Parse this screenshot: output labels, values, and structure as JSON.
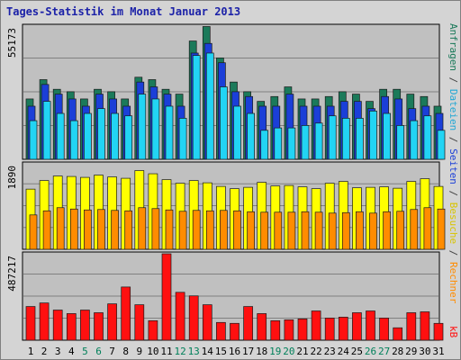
{
  "chart_data": {
    "type": "bar",
    "title": "Tages-Statistik im Monat Januar 2013",
    "days": [
      "1",
      "2",
      "3",
      "4",
      "5",
      "6",
      "7",
      "8",
      "9",
      "10",
      "11",
      "12",
      "13",
      "14",
      "15",
      "16",
      "17",
      "18",
      "19",
      "20",
      "21",
      "22",
      "23",
      "24",
      "25",
      "26",
      "27",
      "28",
      "29",
      "30",
      "31"
    ],
    "weekend_days": [
      "5",
      "6",
      "12",
      "13",
      "19",
      "20",
      "26",
      "27"
    ],
    "panels": [
      {
        "ymax_label": "55173",
        "ymax": 55173,
        "series": [
          {
            "name": "Anfragen",
            "color": "#1b7a5a",
            "values": [
              25000,
              33000,
              29000,
              28000,
              25000,
              29000,
              28000,
              25000,
              34000,
              33000,
              29000,
              27000,
              49000,
              55000,
              42000,
              32000,
              28000,
              24000,
              26000,
              30000,
              25000,
              25000,
              26000,
              28000,
              27000,
              24000,
              29000,
              29000,
              27000,
              26000,
              22000
            ]
          },
          {
            "name": "Seiten",
            "color": "#1b3fd8",
            "values": [
              22000,
              31000,
              27000,
              25000,
              22000,
              27000,
              25000,
              22000,
              32000,
              30000,
              27000,
              22000,
              44000,
              48000,
              40000,
              28000,
              26000,
              22000,
              22000,
              27000,
              22000,
              22000,
              22000,
              24000,
              24000,
              21000,
              26000,
              25000,
              21000,
              22000,
              19000
            ]
          },
          {
            "name": "Dateien",
            "color": "#22d4f4",
            "values": [
              16000,
              24000,
              19000,
              16000,
              19000,
              21000,
              19000,
              18000,
              27000,
              25000,
              22000,
              17000,
              43000,
              44000,
              30000,
              22000,
              19000,
              12000,
              13000,
              13000,
              14000,
              15000,
              18000,
              17000,
              17000,
              20000,
              19000,
              14000,
              16000,
              18000,
              12000
            ]
          }
        ]
      },
      {
        "ymax_label": "1890",
        "ymax": 1890,
        "series": [
          {
            "name": "Besuche",
            "color": "#ffff00",
            "values": [
              1330,
              1520,
              1620,
              1610,
              1590,
              1640,
              1600,
              1570,
              1740,
              1670,
              1540,
              1460,
              1520,
              1470,
              1390,
              1340,
              1370,
              1480,
              1400,
              1410,
              1380,
              1340,
              1460,
              1500,
              1360,
              1370,
              1380,
              1350,
              1500,
              1560,
              1390
            ]
          },
          {
            "name": "Rechner",
            "color": "#ff8c00",
            "values": [
              760,
              850,
              920,
              890,
              870,
              880,
              860,
              850,
              920,
              900,
              870,
              840,
              860,
              850,
              860,
              850,
              830,
              820,
              820,
              820,
              830,
              820,
              800,
              810,
              830,
              800,
              830,
              840,
              880,
              920,
              890
            ]
          }
        ]
      },
      {
        "ymax_label": "487217",
        "ymax": 487217,
        "series": [
          {
            "name": "kB",
            "color": "#ff1010",
            "values": [
              190000,
              210000,
              170000,
              150000,
              170000,
              155000,
              205000,
              300000,
              200000,
              110000,
              487217,
              270000,
              250000,
              200000,
              100000,
              95000,
              190000,
              150000,
              110000,
              115000,
              120000,
              165000,
              125000,
              130000,
              155000,
              165000,
              125000,
              70000,
              155000,
              160000,
              95000
            ]
          }
        ]
      }
    ],
    "side_labels": [
      {
        "text": "Anfragen",
        "color": "#1b7a5a"
      },
      {
        "text": "/",
        "color": "#444444"
      },
      {
        "text": "Dateien",
        "color": "#22a8d4"
      },
      {
        "text": "/",
        "color": "#444444"
      },
      {
        "text": "Seiten",
        "color": "#1b3fd8"
      },
      {
        "text": "/",
        "color": "#444444"
      },
      {
        "text": "Besuche",
        "color": "#d8c400"
      },
      {
        "text": "/",
        "color": "#444444"
      },
      {
        "text": "Rechner",
        "color": "#ff8c00"
      }
    ],
    "side_label_bottom": {
      "text": "kB",
      "color": "#ff1010"
    },
    "grid": true,
    "colors": {
      "panel_bg": "#c0c0c0",
      "frame_bg": "#d4d4d4",
      "gridline": "#808080",
      "weekday_label": "#000000",
      "weekend_label": "#00805a",
      "title": "#1c22a8"
    }
  }
}
